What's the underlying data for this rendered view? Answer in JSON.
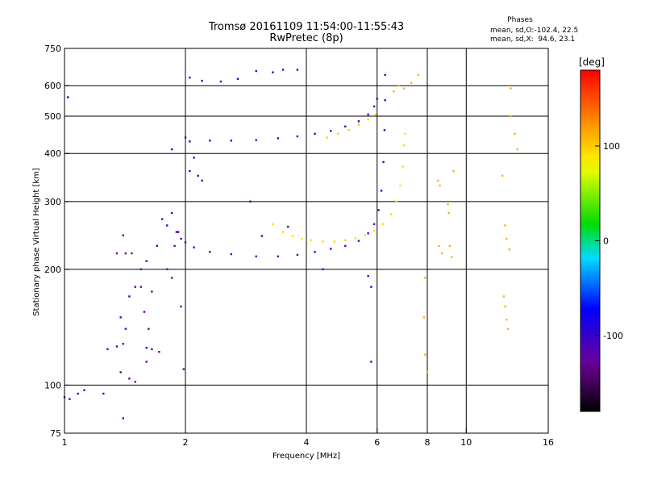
{
  "chart_data": {
    "type": "scatter",
    "title": "Tromsø 20161109 11:54:00-11:55:43",
    "subtitle": "RwPretec (8p)",
    "xlabel": "Frequency [MHz]",
    "ylabel": "Stationary phase Virtual Height [km]",
    "x_scale": "log",
    "y_scale": "log",
    "xlim": [
      1,
      16
    ],
    "ylim": [
      75,
      750
    ],
    "x_ticks": [
      1,
      2,
      4,
      6,
      8,
      10,
      16
    ],
    "x_tick_labels": [
      "1",
      "2",
      "4",
      "6",
      "8",
      "10",
      "16"
    ],
    "x_gridlines": [
      2,
      4,
      6,
      8,
      10
    ],
    "y_ticks": [
      75,
      100,
      200,
      300,
      400,
      500,
      600,
      750
    ],
    "y_tick_labels": [
      "75",
      "100",
      "200",
      "300",
      "400",
      "500",
      "600",
      "750"
    ],
    "y_gridlines": [
      100,
      200,
      300,
      400,
      500,
      600
    ],
    "grid": true,
    "colorbar": {
      "label": "[deg]",
      "ticks": [
        100,
        0,
        -100
      ],
      "tick_labels": [
        "100",
        "0",
        "-100"
      ],
      "range": [
        -180,
        180
      ],
      "colormap": "rainbow"
    },
    "phase_stats": {
      "heading": "Phases",
      "o_mode": "mean, sd,O:-102.4, 22.5",
      "x_mode": "mean, sd,X:  94.6, 23.1"
    },
    "traces": [
      {
        "kind": "o-mode E/F1 trace",
        "points": [
          [
            1.0,
            93
          ],
          [
            1.03,
            92
          ],
          [
            1.08,
            95
          ],
          [
            1.12,
            97
          ],
          [
            1.28,
            124
          ],
          [
            1.35,
            126
          ],
          [
            1.4,
            128
          ],
          [
            1.42,
            140
          ],
          [
            1.38,
            150
          ],
          [
            1.45,
            170
          ],
          [
            1.5,
            180
          ],
          [
            1.55,
            200
          ],
          [
            1.6,
            210
          ],
          [
            1.7,
            230
          ],
          [
            1.8,
            260
          ],
          [
            1.85,
            280
          ],
          [
            1.9,
            250
          ],
          [
            1.95,
            240
          ],
          [
            2.0,
            235
          ],
          [
            2.1,
            228
          ],
          [
            2.3,
            222
          ],
          [
            2.6,
            219
          ],
          [
            3.0,
            216
          ],
          [
            3.4,
            216
          ],
          [
            3.8,
            218
          ],
          [
            4.2,
            222
          ],
          [
            4.6,
            226
          ],
          [
            5.0,
            230
          ],
          [
            5.4,
            237
          ],
          [
            5.7,
            248
          ],
          [
            5.9,
            262
          ],
          [
            6.05,
            285
          ],
          [
            6.15,
            320
          ],
          [
            6.22,
            380
          ],
          [
            6.26,
            460
          ],
          [
            6.28,
            550
          ],
          [
            6.28,
            640
          ]
        ],
        "phase_deg": -110
      },
      {
        "kind": "o-mode sporadic blobs",
        "points": [
          [
            1.35,
            220
          ],
          [
            1.42,
            220
          ],
          [
            1.47,
            220
          ],
          [
            1.55,
            180
          ],
          [
            1.58,
            155
          ],
          [
            1.62,
            140
          ],
          [
            1.65,
            175
          ],
          [
            1.7,
            230
          ],
          [
            1.75,
            270
          ],
          [
            1.8,
            200
          ],
          [
            1.85,
            190
          ],
          [
            1.88,
            230
          ],
          [
            1.92,
            250
          ],
          [
            1.95,
            160
          ],
          [
            1.98,
            110
          ],
          [
            1.38,
            108
          ],
          [
            1.45,
            104
          ],
          [
            1.5,
            102
          ],
          [
            1.6,
            115
          ],
          [
            1.65,
            124
          ],
          [
            1.72,
            122
          ]
        ],
        "phase_deg": -130
      },
      {
        "kind": "o-mode F2 upper trace",
        "points": [
          [
            2.0,
            440
          ],
          [
            2.05,
            430
          ],
          [
            2.1,
            390
          ],
          [
            2.05,
            360
          ],
          [
            2.15,
            350
          ],
          [
            2.2,
            340
          ],
          [
            2.3,
            432
          ],
          [
            2.6,
            432
          ],
          [
            3.0,
            433
          ],
          [
            3.4,
            438
          ],
          [
            3.8,
            443
          ],
          [
            4.2,
            450
          ],
          [
            4.6,
            458
          ],
          [
            5.0,
            470
          ],
          [
            5.4,
            485
          ],
          [
            5.7,
            505
          ],
          [
            5.9,
            530
          ],
          [
            6.0,
            555
          ]
        ],
        "phase_deg": -105
      },
      {
        "kind": "x-mode lower trace",
        "points": [
          [
            3.3,
            262
          ],
          [
            3.5,
            250
          ],
          [
            3.7,
            244
          ],
          [
            3.9,
            240
          ],
          [
            4.1,
            238
          ],
          [
            4.4,
            236
          ],
          [
            4.7,
            236
          ],
          [
            5.0,
            238
          ],
          [
            5.3,
            241
          ],
          [
            5.6,
            245
          ],
          [
            5.9,
            252
          ],
          [
            6.2,
            262
          ],
          [
            6.5,
            278
          ],
          [
            6.7,
            300
          ],
          [
            6.85,
            330
          ],
          [
            6.95,
            370
          ],
          [
            7.0,
            420
          ],
          [
            7.05,
            450
          ]
        ],
        "phase_deg": 95
      },
      {
        "kind": "x-mode upper trace",
        "points": [
          [
            4.5,
            440
          ],
          [
            4.8,
            450
          ],
          [
            5.1,
            460
          ],
          [
            5.4,
            475
          ],
          [
            5.7,
            490
          ],
          [
            5.95,
            505
          ]
        ],
        "phase_deg": 100
      },
      {
        "kind": "x-mode high frequency",
        "points": [
          [
            6.6,
            580
          ],
          [
            6.8,
            600
          ],
          [
            7.0,
            590
          ],
          [
            7.3,
            610
          ],
          [
            7.6,
            640
          ]
        ],
        "phase_deg": 110
      },
      {
        "kind": "scattered high frequency",
        "points": [
          [
            7.9,
            190
          ],
          [
            7.85,
            150
          ],
          [
            7.9,
            120
          ],
          [
            8.0,
            108
          ],
          [
            8.5,
            340
          ],
          [
            8.6,
            330
          ],
          [
            8.55,
            230
          ],
          [
            8.7,
            220
          ],
          [
            9.0,
            295
          ],
          [
            9.05,
            280
          ],
          [
            9.1,
            230
          ],
          [
            9.2,
            215
          ],
          [
            9.3,
            360
          ],
          [
            12.3,
            350
          ],
          [
            12.5,
            260
          ],
          [
            12.6,
            240
          ],
          [
            12.8,
            225
          ],
          [
            12.4,
            170
          ],
          [
            12.5,
            160
          ],
          [
            12.6,
            148
          ],
          [
            12.7,
            140
          ],
          [
            12.9,
            590
          ],
          [
            12.9,
            500
          ],
          [
            13.2,
            450
          ],
          [
            13.4,
            410
          ]
        ],
        "phase_deg": 110
      },
      {
        "kind": "isolated points",
        "points": [
          [
            1.02,
            560
          ],
          [
            2.05,
            630
          ],
          [
            2.2,
            618
          ],
          [
            2.45,
            615
          ],
          [
            2.7,
            625
          ],
          [
            3.0,
            655
          ],
          [
            3.3,
            650
          ],
          [
            3.5,
            660
          ],
          [
            3.8,
            660
          ],
          [
            2.9,
            300
          ],
          [
            1.4,
            245
          ],
          [
            1.85,
            410
          ],
          [
            1.6,
            125
          ],
          [
            3.1,
            244
          ],
          [
            3.6,
            258
          ],
          [
            4.4,
            200
          ],
          [
            5.7,
            192
          ],
          [
            5.8,
            180
          ],
          [
            5.8,
            115
          ],
          [
            1.4,
            82
          ],
          [
            1.25,
            95
          ]
        ],
        "phase_deg": -100
      }
    ]
  }
}
